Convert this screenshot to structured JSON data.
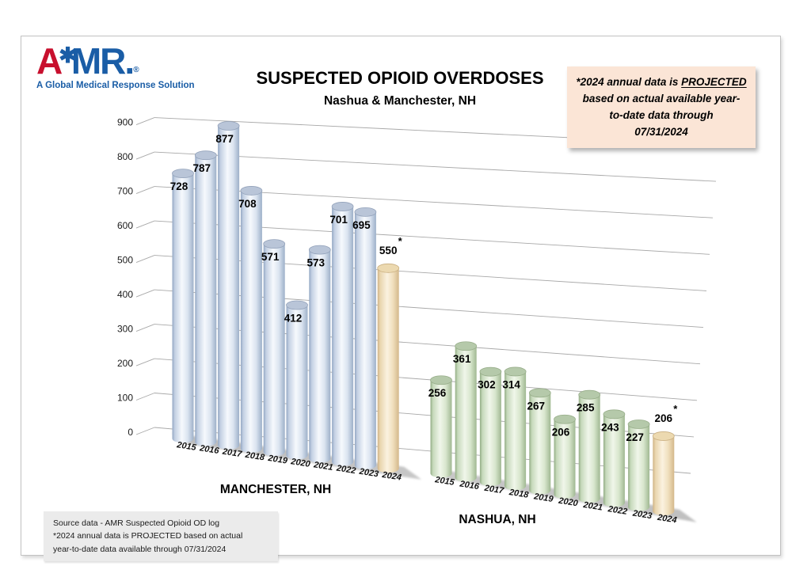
{
  "page": {
    "logo": {
      "brand_a": "A",
      "star_icon": "✱",
      "brand_mr": "MR",
      "period": ".",
      "registered": "®",
      "tagline": "A Global Medical Response Solution"
    },
    "title": "SUSPECTED OPIOID OVERDOSES",
    "subtitle": "Nashua & Manchester, NH",
    "note_box": {
      "line1_prefix": "*2024 annual data is ",
      "line1_underlined": "PROJECTED",
      "line2": "based on actual available year-",
      "line3": "to-date data through",
      "line4": "07/31/2024"
    },
    "source_box": {
      "line1": "Source data - AMR Suspected Opioid OD log",
      "line2": "*2024 annual data is PROJECTED based on actual",
      "line3": "year-to-date data available through 07/31/2024"
    }
  },
  "chart_data": {
    "type": "bar",
    "subtype": "3d-cylinder",
    "title": "SUSPECTED OPIOID OVERDOSES",
    "subtitle": "Nashua & Manchester, NH",
    "categories": [
      "2015",
      "2016",
      "2017",
      "2018",
      "2019",
      "2020",
      "2021",
      "2022",
      "2023",
      "2024"
    ],
    "series": [
      {
        "name": "MANCHESTER, NH",
        "values": [
          728,
          787,
          877,
          708,
          571,
          412,
          573,
          701,
          695,
          550
        ],
        "body_color": "#dce6f2",
        "cap_color": "#b9c5d8"
      },
      {
        "name": "NASHUA, NH",
        "values": [
          256,
          361,
          302,
          314,
          267,
          206,
          285,
          243,
          227,
          206
        ],
        "body_color": "#e2efda",
        "cap_color": "#b5c9aa"
      }
    ],
    "projected": {
      "applies_to_category": "2024",
      "marker": "*",
      "body_color": "#f7ead2",
      "cap_color": "#ecd9b0"
    },
    "xlabel": "",
    "ylabel": "",
    "ylim": [
      0,
      900
    ],
    "yticks": [
      0,
      100,
      200,
      300,
      400,
      500,
      600,
      700,
      800,
      900
    ],
    "grid": true,
    "legend_position": "none",
    "value_labels": "shown"
  }
}
